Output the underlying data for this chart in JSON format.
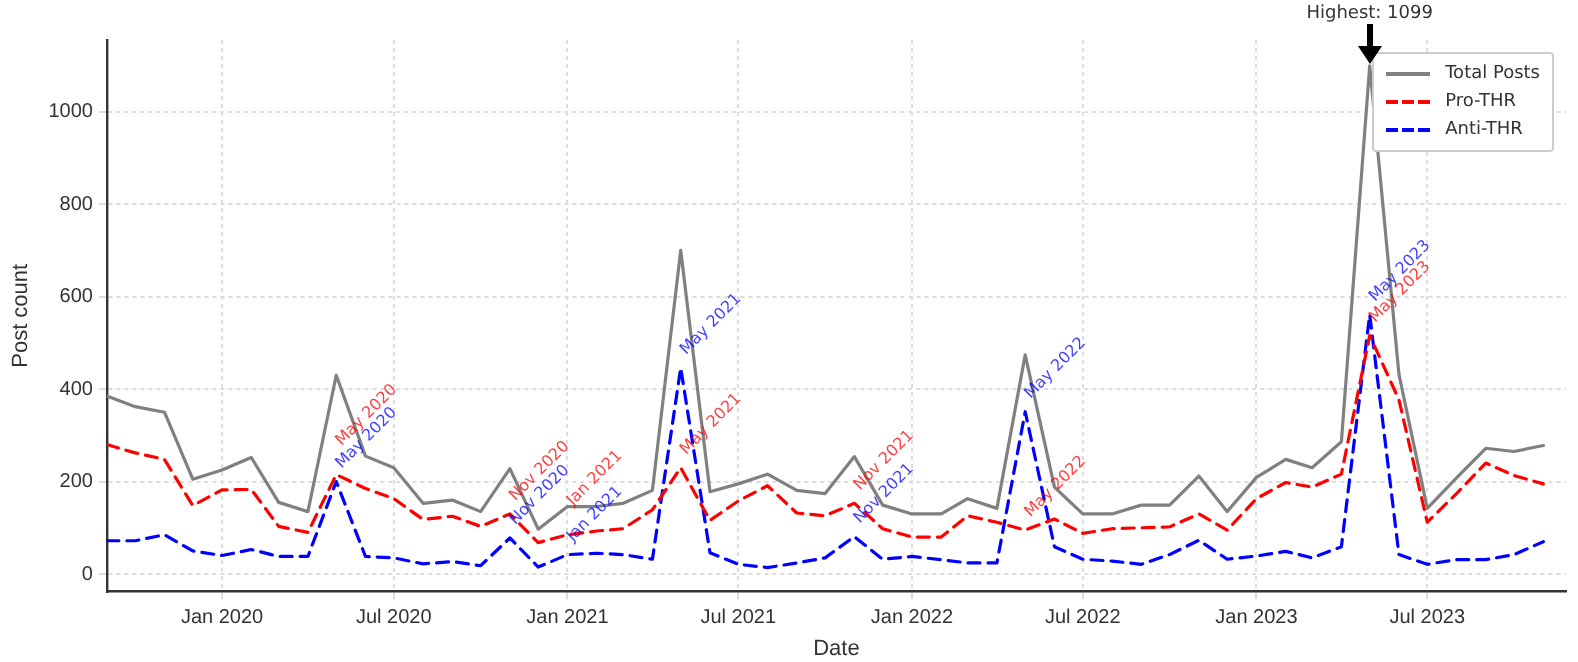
{
  "chart_data": {
    "type": "line",
    "xlabel": "Date",
    "ylabel": "Post count",
    "x": [
      "2019-09",
      "2019-10",
      "2019-11",
      "2019-12",
      "2020-01",
      "2020-02",
      "2020-03",
      "2020-04",
      "2020-05",
      "2020-06",
      "2020-07",
      "2020-08",
      "2020-09",
      "2020-10",
      "2020-11",
      "2020-12",
      "2021-01",
      "2021-02",
      "2021-03",
      "2021-04",
      "2021-05",
      "2021-06",
      "2021-07",
      "2021-08",
      "2021-09",
      "2021-10",
      "2021-11",
      "2021-12",
      "2022-01",
      "2022-02",
      "2022-03",
      "2022-04",
      "2022-05",
      "2022-06",
      "2022-07",
      "2022-08",
      "2022-09",
      "2022-10",
      "2022-11",
      "2022-12",
      "2023-01",
      "2023-02",
      "2023-03",
      "2023-04",
      "2023-05",
      "2023-06",
      "2023-07",
      "2023-08",
      "2023-09",
      "2023-10",
      "2023-11"
    ],
    "series": [
      {
        "name": "Total Posts",
        "color": "#808080",
        "line_style": "solid",
        "values": [
          385,
          362,
          350,
          205,
          225,
          252,
          155,
          135,
          430,
          255,
          230,
          153,
          160,
          135,
          228,
          97,
          146,
          146,
          153,
          181,
          700,
          178,
          195,
          216,
          181,
          174,
          254,
          149,
          130,
          130,
          163,
          142,
          474,
          188,
          130,
          130,
          149,
          149,
          212,
          135,
          209,
          248,
          230,
          286,
          1099,
          432,
          142,
          208,
          272,
          265,
          278
        ]
      },
      {
        "name": "Pro-THR",
        "color": "#ff0000",
        "line_style": "dashed",
        "values": [
          280,
          262,
          248,
          148,
          182,
          183,
          103,
          90,
          215,
          185,
          163,
          118,
          125,
          103,
          130,
          68,
          85,
          93,
          98,
          139,
          230,
          116,
          158,
          191,
          132,
          126,
          153,
          98,
          80,
          80,
          126,
          112,
          95,
          119,
          88,
          98,
          100,
          102,
          130,
          95,
          163,
          198,
          188,
          216,
          516,
          377,
          112,
          174,
          240,
          213,
          195
        ]
      },
      {
        "name": "Anti-THR",
        "color": "#0000ff",
        "line_style": "dashed",
        "values": [
          72,
          72,
          85,
          50,
          40,
          53,
          38,
          38,
          200,
          38,
          35,
          22,
          27,
          18,
          78,
          15,
          42,
          45,
          42,
          32,
          446,
          46,
          21,
          14,
          24,
          35,
          81,
          32,
          38,
          31,
          24,
          24,
          351,
          59,
          32,
          28,
          21,
          42,
          73,
          32,
          39,
          49,
          35,
          59,
          561,
          42,
          21,
          31,
          31,
          42,
          70
        ]
      }
    ],
    "xlim": [
      "2019-09",
      "2023-11-25"
    ],
    "xticks": [
      {
        "value": "2020-01",
        "label": "Jan 2020"
      },
      {
        "value": "2020-07",
        "label": "Jul 2020"
      },
      {
        "value": "2021-01",
        "label": "Jan 2021"
      },
      {
        "value": "2021-07",
        "label": "Jul 2021"
      },
      {
        "value": "2022-01",
        "label": "Jan 2022"
      },
      {
        "value": "2022-07",
        "label": "Jul 2022"
      },
      {
        "value": "2023-01",
        "label": "Jan 2023"
      },
      {
        "value": "2023-07",
        "label": "Jul 2023"
      }
    ],
    "ylim": [
      -38,
      1155
    ],
    "yticks": [
      0,
      200,
      400,
      600,
      800,
      1000
    ],
    "grid": true,
    "legend": "top right",
    "annotations": [
      {
        "text": "Highest: 1099",
        "x": "2023-05",
        "y": 1099
      },
      {
        "text": "May 2020",
        "x": "2020-05",
        "y": 215
      },
      {
        "text": "May 2020",
        "x": "2020-05",
        "y": 200
      },
      {
        "text": "Nov 2020",
        "x": "2020-11",
        "y": 130
      },
      {
        "text": "Nov 2020",
        "x": "2020-11",
        "y": 78
      },
      {
        "text": "Jan 2021",
        "x": "2021-01",
        "y": 85
      },
      {
        "text": "Jan 2021",
        "x": "2021-01",
        "y": 42
      },
      {
        "text": "May 2021",
        "x": "2021-05",
        "y": 230
      },
      {
        "text": "May 2021",
        "x": "2021-05",
        "y": 446
      },
      {
        "text": "Nov 2021",
        "x": "2021-11",
        "y": 153
      },
      {
        "text": "Nov 2021",
        "x": "2021-11",
        "y": 81
      },
      {
        "text": "May 2022",
        "x": "2022-05",
        "y": 95
      },
      {
        "text": "May 2022",
        "x": "2022-05",
        "y": 351
      },
      {
        "text": "May 2023",
        "x": "2023-05",
        "y": 516
      },
      {
        "text": "May 2023",
        "x": "2023-05",
        "y": 561
      }
    ]
  }
}
